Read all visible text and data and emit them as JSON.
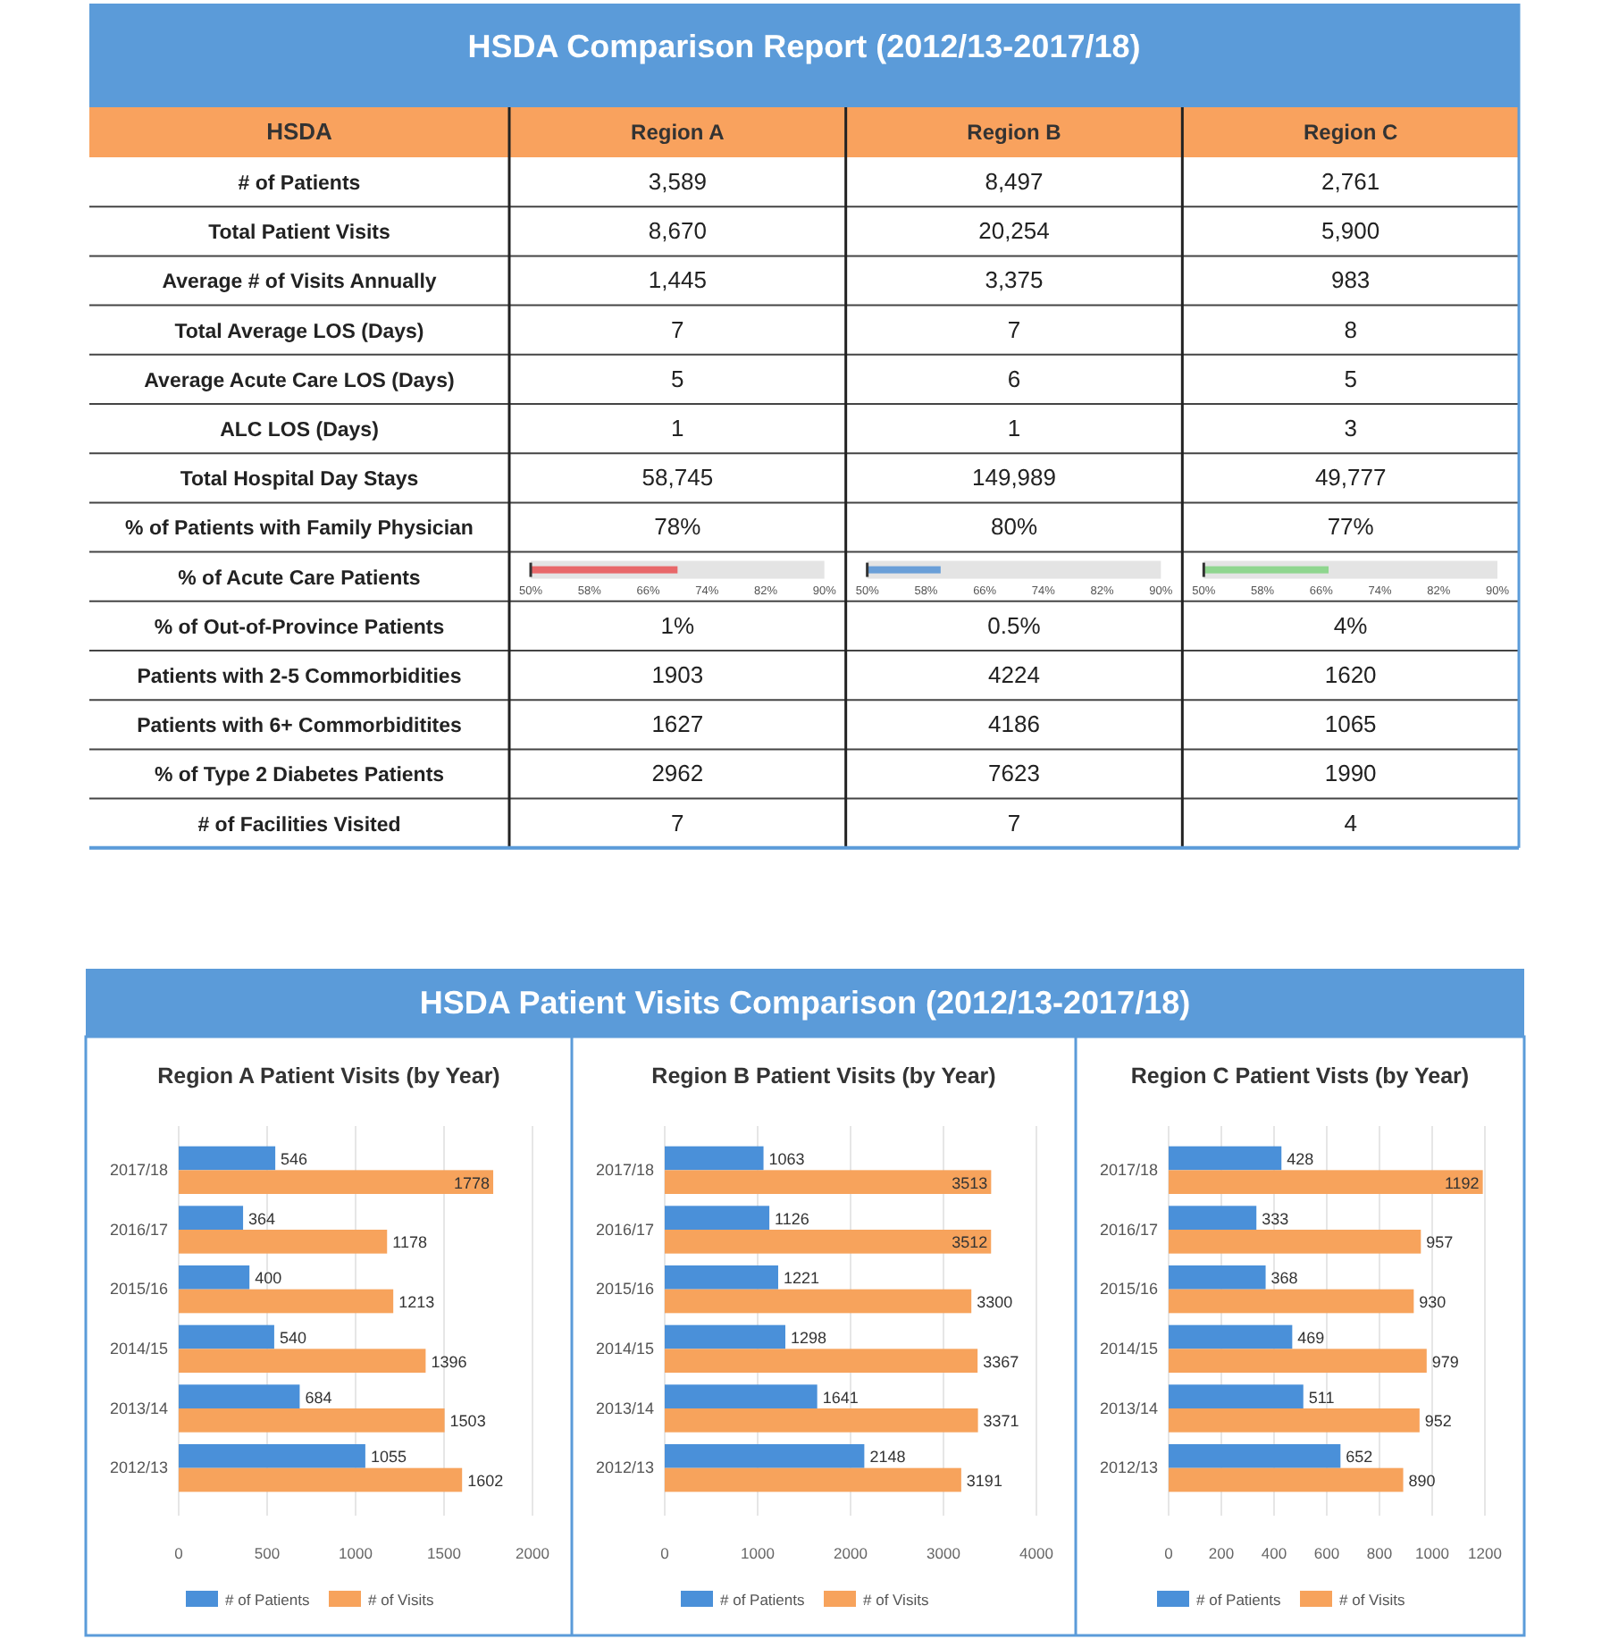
{
  "chart_data": [
    {
      "type": "other",
      "title": "HSDA Comparison Report (2012/13-2017/18)",
      "ylabel": "HSDA",
      "categories": [
        "Region A",
        "Region B",
        "Region C"
      ],
      "y_categories": [
        "# of Patients",
        "Total Patient Visits",
        "Average # of Visits Annually",
        "Total Average LOS (Days)",
        "Average Acute Care LOS (Days)",
        "ALC LOS (Days)",
        "Total Hospital Day Stays",
        "% of Patients with Family Physician",
        "% of Acute Care Patients",
        "% of Out-of-Province Patients",
        "Patients with 2-5 Commorbidities",
        "Patients with 6+ Commorbiditites",
        "% of Type 2 Diabetes Patients",
        "# of Facilities Visited"
      ],
      "cell_labels": [
        [
          "3,589",
          "8,497",
          "2,761"
        ],
        [
          "8,670",
          "20,254",
          "5,900"
        ],
        [
          "1,445",
          "3,375",
          "983"
        ],
        [
          "7",
          "7",
          "8"
        ],
        [
          "5",
          "6",
          "5"
        ],
        [
          "1",
          "1",
          "3"
        ],
        [
          "58,745",
          "149,989",
          "49,777"
        ],
        [
          "78%",
          "80%",
          "77%"
        ],
        [
          null,
          null,
          null
        ],
        [
          "1%",
          "0.5%",
          "4%"
        ],
        [
          "1903",
          "4224",
          "1620"
        ],
        [
          "1627",
          "4186",
          "1065"
        ],
        [
          "2962",
          "7623",
          "1990"
        ],
        [
          "7",
          "7",
          "4"
        ]
      ]
    },
    {
      "type": "bar",
      "orientation": "horizontal",
      "categories": [
        null
      ],
      "values": [
        70
      ],
      "color": "#e8686a",
      "xlim": [
        50,
        90
      ],
      "xticks": [
        {
          "value": 50,
          "label": "50%"
        },
        {
          "value": 58,
          "label": "58%"
        },
        {
          "value": 66,
          "label": "66%"
        },
        {
          "value": 74,
          "label": "74%"
        },
        {
          "value": 82,
          "label": "82%"
        },
        {
          "value": 90,
          "label": "90%"
        }
      ],
      "bands": [
        {
          "axis": "x",
          "from": 50,
          "to": 90,
          "color": "#e4e4e4"
        }
      ]
    },
    {
      "type": "bar",
      "orientation": "horizontal",
      "categories": [
        null
      ],
      "values": [
        60
      ],
      "color": "#6a9fd8",
      "xlim": [
        50,
        90
      ],
      "xticks": [
        {
          "value": 50,
          "label": "50%"
        },
        {
          "value": 58,
          "label": "58%"
        },
        {
          "value": 66,
          "label": "66%"
        },
        {
          "value": 74,
          "label": "74%"
        },
        {
          "value": 82,
          "label": "82%"
        },
        {
          "value": 90,
          "label": "90%"
        }
      ],
      "bands": [
        {
          "axis": "x",
          "from": 50,
          "to": 90,
          "color": "#e4e4e4"
        }
      ]
    },
    {
      "type": "bar",
      "orientation": "horizontal",
      "categories": [
        null
      ],
      "values": [
        67
      ],
      "color": "#8fd68f",
      "xlim": [
        50,
        90
      ],
      "xticks": [
        {
          "value": 50,
          "label": "50%"
        },
        {
          "value": 58,
          "label": "58%"
        },
        {
          "value": 66,
          "label": "66%"
        },
        {
          "value": 74,
          "label": "74%"
        },
        {
          "value": 82,
          "label": "82%"
        },
        {
          "value": 90,
          "label": "90%"
        }
      ],
      "bands": [
        {
          "axis": "x",
          "from": 50,
          "to": 90,
          "color": "#e4e4e4"
        }
      ]
    },
    {
      "type": "other",
      "title": "HSDA Patient Visits Comparison (2012/13-2017/18)"
    },
    {
      "type": "bar",
      "orientation": "horizontal",
      "title": "Region A Patient Visits (by Year)",
      "categories": [
        "2017/18",
        "2016/17",
        "2015/16",
        "2014/15",
        "2013/14",
        "2012/13"
      ],
      "series": [
        {
          "name": "# of Patients",
          "color": "#4a90d9",
          "values": [
            546,
            364,
            400,
            540,
            684,
            1055
          ]
        },
        {
          "name": "# of Visits",
          "color": "#f7a35c",
          "values": [
            1778,
            1178,
            1213,
            1396,
            1503,
            1602
          ]
        }
      ],
      "xlim": [
        0,
        2000
      ],
      "xticks": [
        0,
        500,
        1000,
        1500,
        2000
      ],
      "grid": "x",
      "legend": "bottom",
      "data_labels": true
    },
    {
      "type": "bar",
      "orientation": "horizontal",
      "title": "Region B Patient Visits (by Year)",
      "categories": [
        "2017/18",
        "2016/17",
        "2015/16",
        "2014/15",
        "2013/14",
        "2012/13"
      ],
      "series": [
        {
          "name": "# of Patients",
          "color": "#4a90d9",
          "values": [
            1063,
            1126,
            1221,
            1298,
            1641,
            2148
          ]
        },
        {
          "name": "# of Visits",
          "color": "#f7a35c",
          "values": [
            3513,
            3512,
            3300,
            3367,
            3371,
            3191
          ]
        }
      ],
      "xlim": [
        0,
        4000
      ],
      "xticks": [
        0,
        1000,
        2000,
        3000,
        4000
      ],
      "grid": "x",
      "legend": "bottom",
      "data_labels": true
    },
    {
      "type": "bar",
      "orientation": "horizontal",
      "title": "Region C Patient Vists (by Year)",
      "categories": [
        "2017/18",
        "2016/17",
        "2015/16",
        "2014/15",
        "2013/14",
        "2012/13"
      ],
      "series": [
        {
          "name": "# of Patients",
          "color": "#4a90d9",
          "values": [
            428,
            333,
            368,
            469,
            511,
            652
          ]
        },
        {
          "name": "# of Visits",
          "color": "#f7a35c",
          "values": [
            1192,
            957,
            930,
            979,
            952,
            890
          ]
        }
      ],
      "xlim": [
        0,
        1200
      ],
      "xticks": [
        0,
        200,
        400,
        600,
        800,
        1000,
        1200
      ],
      "grid": "x",
      "legend": "bottom",
      "data_labels": true
    }
  ]
}
